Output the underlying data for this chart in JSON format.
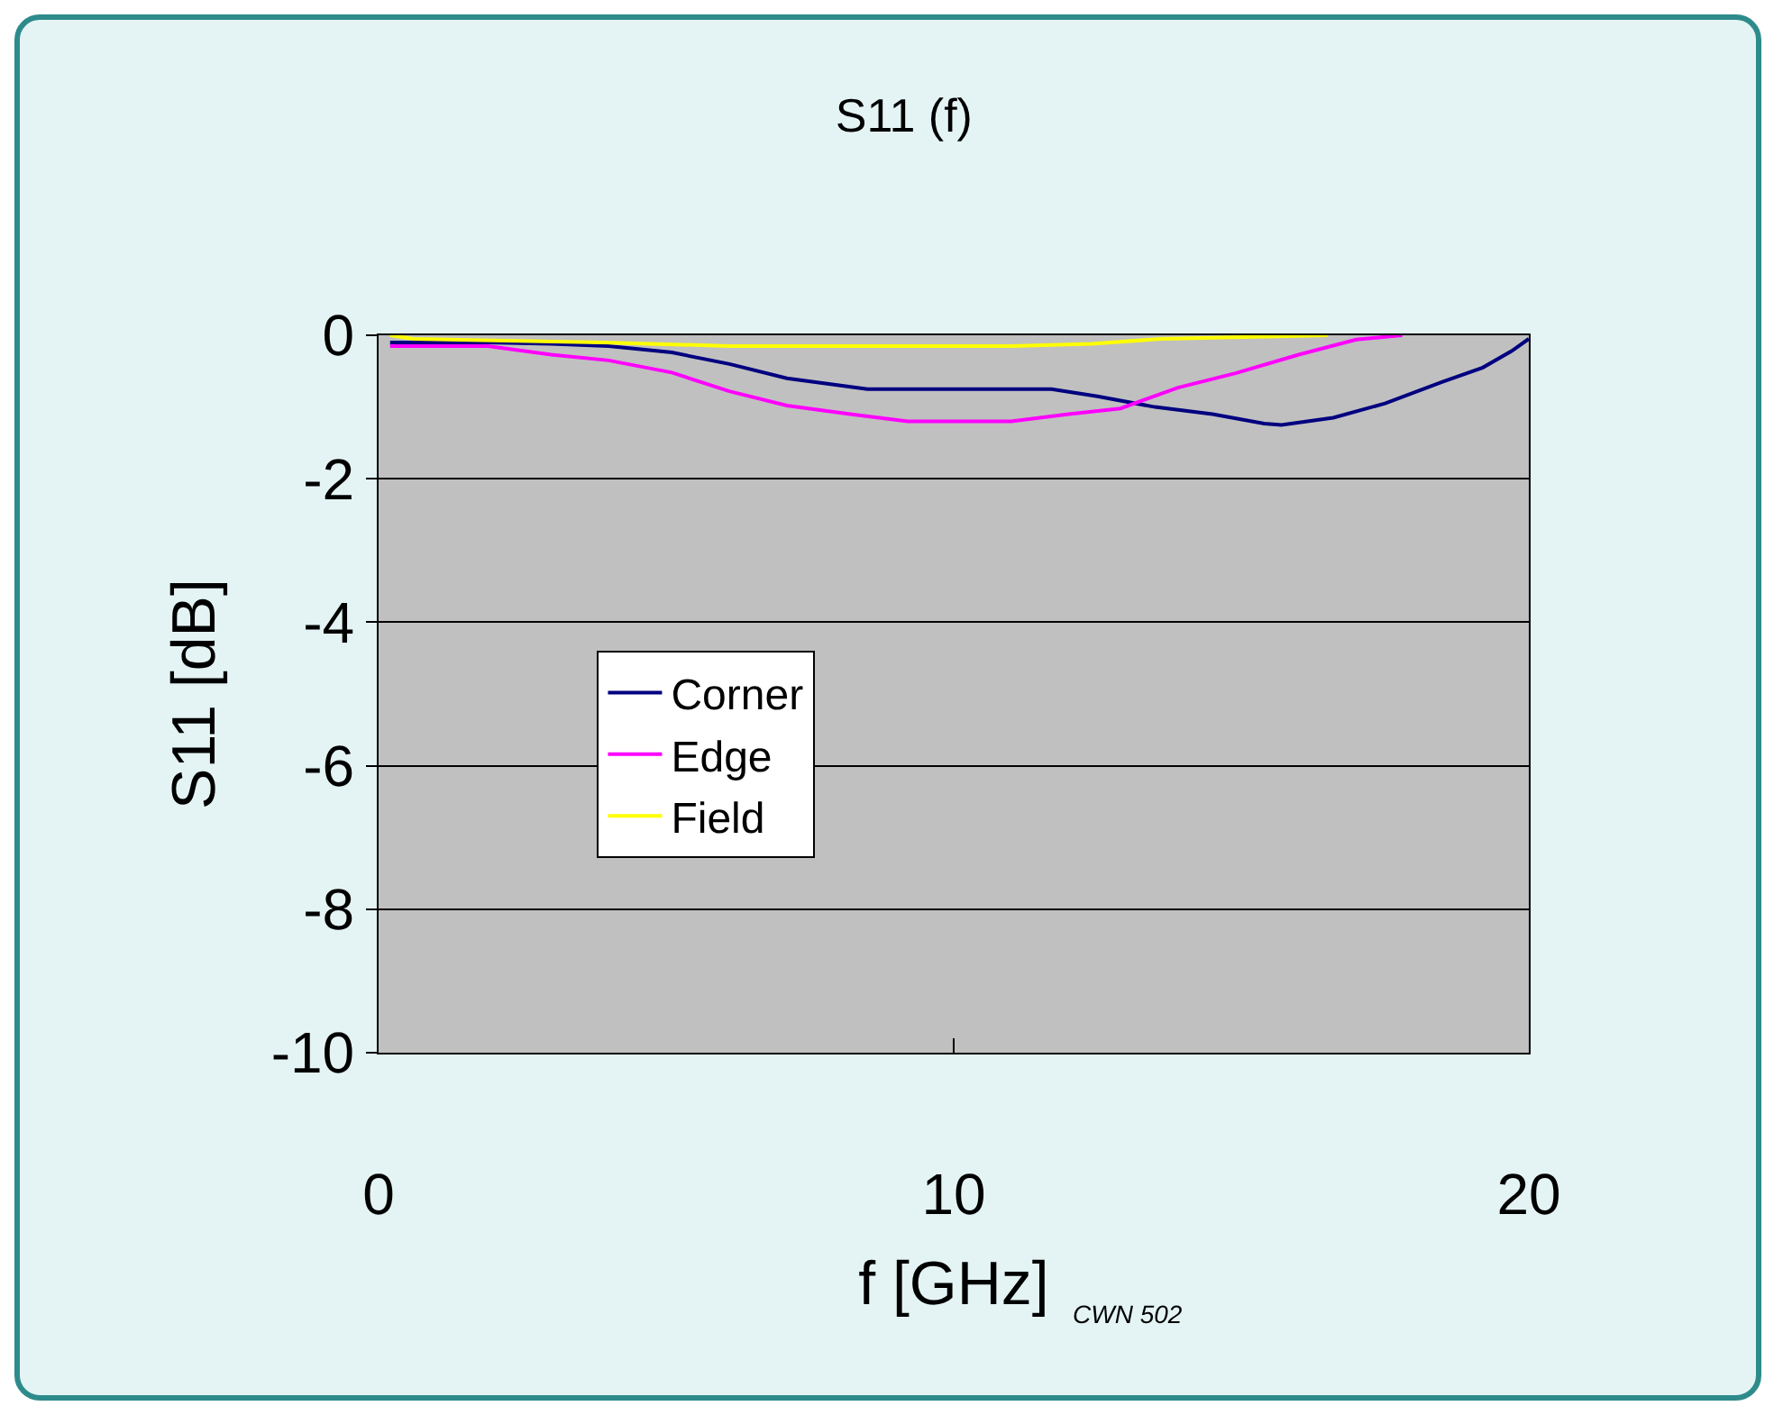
{
  "chart_data": {
    "type": "line",
    "title": "S11 (f)",
    "xlabel": "f [GHz]",
    "ylabel": "S11 [dB]",
    "annotations": [
      "CWN 502"
    ],
    "xlim": [
      0,
      20
    ],
    "xticks": [
      0,
      10,
      20
    ],
    "ylim": [
      -10,
      0
    ],
    "yticks": [
      0,
      -2,
      -4,
      -6,
      -8,
      -10
    ],
    "grid": "y",
    "legend": "left",
    "marker": "none",
    "line_style": "solid",
    "series": [
      {
        "name": "Corner",
        "color": "#000080",
        "x": [
          0.2,
          1.9,
          3.0,
          4.0,
          5.1,
          6.1,
          7.1,
          8.5,
          10.0,
          11.7,
          12.5,
          13.5,
          14.5,
          15.4,
          15.7,
          16.6,
          17.5,
          18.5,
          19.2,
          19.7,
          20.0
        ],
        "values": [
          -0.1,
          -0.1,
          -0.12,
          -0.15,
          -0.24,
          -0.4,
          -0.6,
          -0.75,
          -0.75,
          -0.75,
          -0.85,
          -1.0,
          -1.1,
          -1.23,
          -1.25,
          -1.15,
          -0.95,
          -0.65,
          -0.45,
          -0.22,
          -0.05
        ]
      },
      {
        "name": "Edge",
        "color": "#ff00ff",
        "x": [
          0.2,
          1.9,
          3.0,
          4.0,
          5.1,
          6.1,
          7.1,
          8.2,
          9.2,
          11.0,
          12.0,
          12.9,
          13.9,
          14.9,
          16.0,
          17.0,
          17.8
        ],
        "values": [
          -0.15,
          -0.15,
          -0.27,
          -0.35,
          -0.52,
          -0.78,
          -0.98,
          -1.1,
          -1.2,
          -1.2,
          -1.1,
          -1.02,
          -0.73,
          -0.53,
          -0.27,
          -0.06,
          0
        ]
      },
      {
        "name": "Field",
        "color": "#ffff00",
        "x": [
          0.2,
          0.6,
          3.9,
          6.1,
          11.0,
          12.4,
          13.6,
          16.5
        ],
        "values": [
          0,
          -0.05,
          -0.1,
          -0.15,
          -0.15,
          -0.12,
          -0.05,
          0
        ]
      }
    ]
  }
}
